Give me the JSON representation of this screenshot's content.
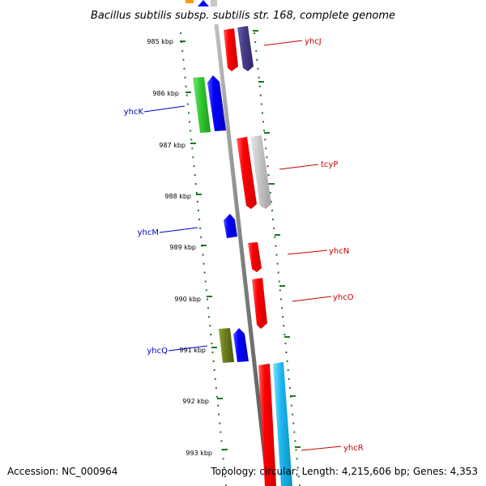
{
  "title": "Bacillus subtilis subsp. subtilis str. 168, complete genome",
  "footer": {
    "accession": "Accession: NC_000964",
    "summary": "Topology: circular; Length: 4,215,606 bp; Genes: 4,353"
  },
  "ticks": [
    "985 kbp",
    "986 kbp",
    "987 kbp",
    "988 kbp",
    "989 kbp",
    "990 kbp",
    "991 kbp",
    "992 kbp",
    "993 kbp"
  ],
  "labels": {
    "yhcJ": "yhcJ",
    "yhcK": "yhcK",
    "tcyP": "tcyP",
    "yhcM": "yhcM",
    "yhcN": "yhcN",
    "yhcO": "yhcO",
    "yhcQ": "yhcQ",
    "yhcR": "yhcR"
  },
  "colors": {
    "forward_strand_label": "#cc0000",
    "reverse_strand_label": "#0000cc",
    "backbone": "#808080",
    "tick": "#1a7a1a"
  }
}
